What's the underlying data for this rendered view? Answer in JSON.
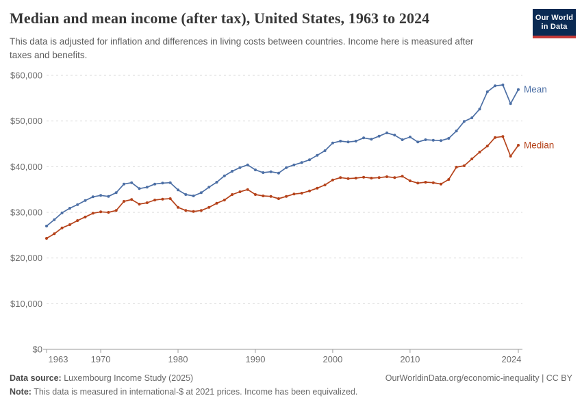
{
  "header": {
    "title": "Median and mean income (after tax), United States, 1963 to 2024",
    "subtitle": "This data is adjusted for inflation and differences in living costs between countries. Income here is measured after taxes and benefits.",
    "logo": {
      "line1": "Our World",
      "line2": "in Data",
      "bg_color": "#0a2a53",
      "stripe_color": "#c53a38"
    }
  },
  "chart_data": {
    "type": "line",
    "title": "Median and mean income (after tax), United States, 1963 to 2024",
    "xlabel": "",
    "ylabel": "",
    "ylim": [
      0,
      60000
    ],
    "xlim": [
      1963,
      2024
    ],
    "grid": "horizontal-dashed",
    "legend_position": "line-end-labels-right",
    "y_ticks": [
      0,
      10000,
      20000,
      30000,
      40000,
      50000,
      60000
    ],
    "y_tick_labels": [
      "$0",
      "$10,000",
      "$20,000",
      "$30,000",
      "$40,000",
      "$50,000",
      "$60,000"
    ],
    "x_ticks": [
      1963,
      1970,
      1980,
      1990,
      2000,
      2010,
      2024
    ],
    "x": [
      1963,
      1964,
      1965,
      1966,
      1967,
      1968,
      1969,
      1970,
      1971,
      1972,
      1973,
      1974,
      1975,
      1976,
      1977,
      1978,
      1979,
      1980,
      1981,
      1982,
      1983,
      1984,
      1985,
      1986,
      1987,
      1988,
      1989,
      1990,
      1991,
      1992,
      1993,
      1994,
      1995,
      1996,
      1997,
      1998,
      1999,
      2000,
      2001,
      2002,
      2003,
      2004,
      2005,
      2006,
      2007,
      2008,
      2009,
      2010,
      2011,
      2012,
      2013,
      2014,
      2015,
      2016,
      2017,
      2018,
      2019,
      2020,
      2021,
      2022,
      2023,
      2024
    ],
    "series": [
      {
        "name": "Mean",
        "color": "#4c6fa5",
        "values": [
          27000,
          28400,
          29900,
          30900,
          31700,
          32600,
          33400,
          33700,
          33500,
          34300,
          36200,
          36500,
          35200,
          35500,
          36200,
          36400,
          36500,
          34900,
          33900,
          33600,
          34300,
          35500,
          36600,
          38000,
          39000,
          39800,
          40400,
          39300,
          38700,
          38900,
          38600,
          39800,
          40400,
          40900,
          41500,
          42500,
          43500,
          45200,
          45600,
          45400,
          45600,
          46300,
          46000,
          46700,
          47400,
          46900,
          45900,
          46500,
          45400,
          45900,
          45800,
          45700,
          46200,
          47800,
          49900,
          50700,
          52600,
          56400,
          57700,
          57900,
          53800,
          56900
        ]
      },
      {
        "name": "Median",
        "color": "#b5421a",
        "values": [
          24300,
          25300,
          26600,
          27300,
          28200,
          29000,
          29800,
          30100,
          30000,
          30400,
          32400,
          32800,
          31800,
          32100,
          32700,
          32900,
          33000,
          31100,
          30400,
          30200,
          30400,
          31100,
          32000,
          32700,
          33900,
          34500,
          35000,
          33900,
          33600,
          33500,
          33000,
          33500,
          34000,
          34200,
          34700,
          35300,
          36000,
          37100,
          37600,
          37400,
          37500,
          37700,
          37500,
          37600,
          37800,
          37600,
          37900,
          36900,
          36400,
          36600,
          36500,
          36200,
          37200,
          39900,
          40200,
          41700,
          43200,
          44500,
          46400,
          46600,
          42300,
          44700
        ]
      }
    ]
  },
  "footer": {
    "datasource_label": "Data source:",
    "datasource": "Luxembourg Income Study (2025)",
    "url": "OurWorldinData.org/economic-inequality | CC BY",
    "note_label": "Note:",
    "note": "This data is measured in international-$ at 2021 prices. Income has been equivalized."
  }
}
